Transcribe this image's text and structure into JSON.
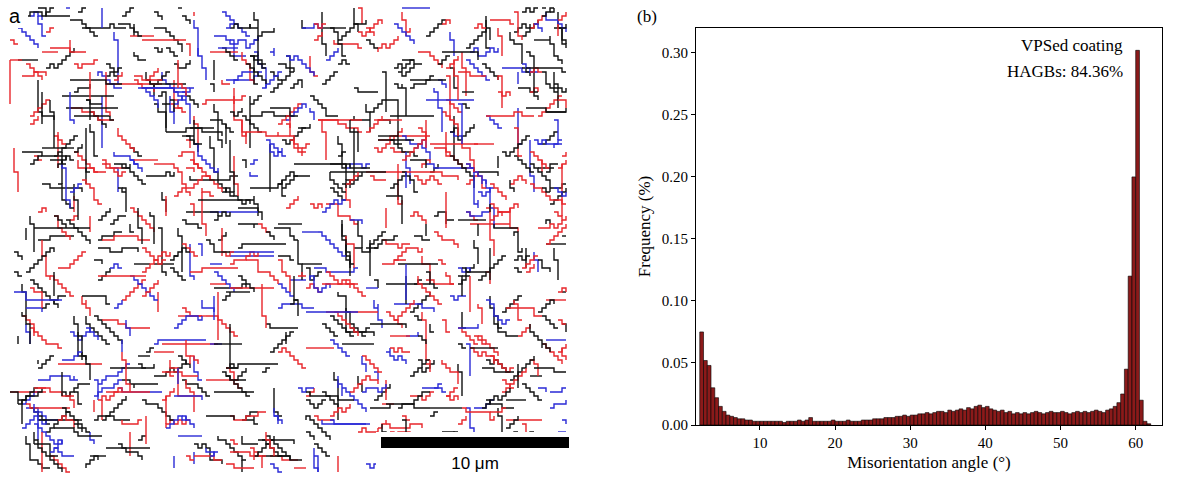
{
  "panel_a": {
    "label": "a",
    "scale_bar": "10 μm"
  },
  "chart_data": {
    "type": "histogram",
    "panel_label": "(b)",
    "x_label": "Misorientation angle (°)",
    "y_label": "Frequency (%)",
    "annotations": [
      "VPSed coating",
      "HAGBs: 84.36%"
    ],
    "color": "#8b1a1a",
    "bins": [
      2,
      2.5,
      3,
      3.5,
      4,
      4.5,
      5,
      5.5,
      6,
      6.5,
      7,
      7.5,
      8,
      8.5,
      9,
      9.5,
      10,
      10.5,
      11,
      11.5,
      12,
      12.5,
      13,
      13.5,
      14,
      14.5,
      15,
      15.5,
      16,
      16.5,
      17,
      17.5,
      18,
      18.5,
      19,
      19.5,
      20,
      20.5,
      21,
      21.5,
      22,
      22.5,
      23,
      23.5,
      24,
      24.5,
      25,
      25.5,
      26,
      26.5,
      27,
      27.5,
      28,
      28.5,
      29,
      29.5,
      30,
      30.5,
      31,
      31.5,
      32,
      32.5,
      33,
      33.5,
      34,
      34.5,
      35,
      35.5,
      36,
      36.5,
      37,
      37.5,
      38,
      38.5,
      39,
      39.5,
      40,
      40.5,
      41,
      41.5,
      42,
      42.5,
      43,
      43.5,
      44,
      44.5,
      45,
      45.5,
      46,
      46.5,
      47,
      47.5,
      48,
      48.5,
      49,
      49.5,
      50,
      50.5,
      51,
      51.5,
      52,
      52.5,
      53,
      53.5,
      54,
      54.5,
      55,
      55.5,
      56,
      56.5,
      57,
      57.5,
      58,
      58.5,
      59,
      59.5,
      60,
      60.5,
      61,
      61.5,
      62
    ],
    "values": [
      0.075,
      0.052,
      0.048,
      0.03,
      0.022,
      0.015,
      0.011,
      0.008,
      0.007,
      0.006,
      0.005,
      0.005,
      0.004,
      0.004,
      0.003,
      0.003,
      0.003,
      0.003,
      0.003,
      0.003,
      0.003,
      0.003,
      0.002,
      0.003,
      0.003,
      0.003,
      0.004,
      0.003,
      0.004,
      0.006,
      0.003,
      0.003,
      0.003,
      0.003,
      0.003,
      0.004,
      0.003,
      0.003,
      0.003,
      0.004,
      0.003,
      0.003,
      0.003,
      0.004,
      0.004,
      0.004,
      0.005,
      0.005,
      0.005,
      0.006,
      0.006,
      0.006,
      0.007,
      0.007,
      0.008,
      0.007,
      0.008,
      0.008,
      0.009,
      0.009,
      0.01,
      0.009,
      0.01,
      0.011,
      0.011,
      0.01,
      0.012,
      0.011,
      0.012,
      0.013,
      0.012,
      0.014,
      0.013,
      0.015,
      0.016,
      0.014,
      0.015,
      0.013,
      0.012,
      0.011,
      0.012,
      0.01,
      0.011,
      0.009,
      0.01,
      0.009,
      0.01,
      0.009,
      0.01,
      0.011,
      0.01,
      0.009,
      0.01,
      0.011,
      0.01,
      0.01,
      0.011,
      0.01,
      0.009,
      0.01,
      0.011,
      0.01,
      0.011,
      0.01,
      0.011,
      0.012,
      0.011,
      0.01,
      0.012,
      0.013,
      0.015,
      0.018,
      0.025,
      0.045,
      0.12,
      0.2,
      0.302,
      0.02,
      0.003,
      0.001
    ],
    "xlim": [
      1.5,
      63.5
    ],
    "xticks": [
      10,
      20,
      30,
      40,
      50,
      60
    ],
    "ylim": [
      0,
      0.32
    ],
    "yticks": [
      {
        "value": 0,
        "label": "0.00"
      },
      0.05,
      {
        "value": 0.1,
        "label": "0.10"
      },
      0.15,
      {
        "value": 0.2,
        "label": "0.20"
      },
      0.25,
      {
        "value": 0.3,
        "label": "0.30"
      }
    ],
    "grid": false
  }
}
